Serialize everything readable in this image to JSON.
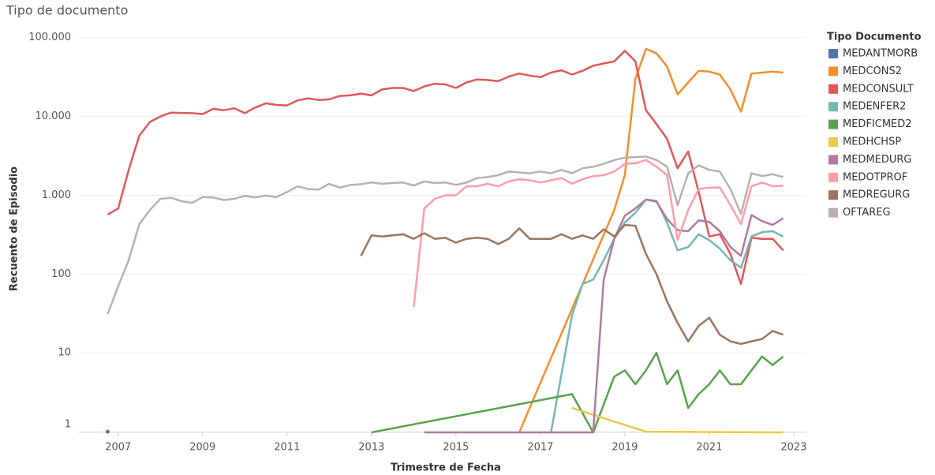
{
  "chart_data": {
    "type": "line",
    "title": "Tipo de documento",
    "x_label": "Trimestre de Fecha",
    "y_label": "Recuento de Episodio",
    "legend_title": "Tipo Documento",
    "legend": "right",
    "log_y": true,
    "grid": true,
    "xlim": [
      2006.07,
      2023.3
    ],
    "xticks": [
      2007,
      2009,
      2011,
      2013,
      2015,
      2017,
      2019,
      2021,
      2023
    ],
    "ylim": [
      0.98,
      134000
    ],
    "yticks": [
      1,
      10,
      100,
      {
        "value": 1000,
        "label": "1.000"
      },
      {
        "value": 10000,
        "label": "10.000"
      },
      {
        "value": 100000,
        "label": "100.000"
      }
    ],
    "x": [
      2006.75,
      2007,
      2007.25,
      2007.5,
      2007.75,
      2008,
      2008.25,
      2008.5,
      2008.75,
      2009,
      2009.25,
      2009.5,
      2009.75,
      2010,
      2010.25,
      2010.5,
      2010.75,
      2011,
      2011.25,
      2011.5,
      2011.75,
      2012,
      2012.25,
      2012.5,
      2012.75,
      2013,
      2013.25,
      2013.5,
      2013.75,
      2014,
      2014.25,
      2014.5,
      2014.75,
      2015,
      2015.25,
      2015.5,
      2015.75,
      2016,
      2016.25,
      2016.5,
      2016.75,
      2017,
      2017.25,
      2017.5,
      2017.75,
      2018,
      2018.25,
      2018.5,
      2018.75,
      2019,
      2019.25,
      2019.5,
      2019.75,
      2020,
      2020.25,
      2020.5,
      2020.75,
      2021,
      2021.25,
      2021.5,
      2021.75,
      2022,
      2022.25,
      2022.5,
      2022.75
    ],
    "series": [
      {
        "name": "MEDANTMORB",
        "color": "#4e79a7",
        "x": [
          2006.75
        ],
        "values": [
          1
        ]
      },
      {
        "name": "MEDCONS2",
        "color": "#f28e2b",
        "x": [
          2016.5,
          2018.75,
          2019,
          2019.25,
          2019.5,
          2019.75,
          2020,
          2020.25,
          2020.5,
          2020.75,
          2021,
          2021.25,
          2021.5,
          2021.75,
          2022,
          2022.25,
          2022.5,
          2022.75
        ],
        "values": [
          0,
          650,
          1800,
          30000,
          72000,
          63000,
          43000,
          19000,
          27000,
          38000,
          37000,
          34000,
          22000,
          11500,
          35000,
          36000,
          37000,
          36000
        ]
      },
      {
        "name": "MEDCONSULT",
        "color": "#e15759",
        "values": [
          570,
          680,
          2100,
          5700,
          8500,
          10000,
          11200,
          11100,
          11000,
          10700,
          12500,
          12000,
          12700,
          11000,
          13000,
          14700,
          14000,
          13800,
          16000,
          17000,
          16200,
          16500,
          18200,
          18500,
          19500,
          18500,
          22000,
          23000,
          23000,
          21000,
          24000,
          26000,
          25500,
          23000,
          27000,
          29500,
          29000,
          28000,
          32000,
          35000,
          33000,
          31500,
          36000,
          38500,
          34000,
          38000,
          44000,
          47000,
          50000,
          68000,
          50000,
          12000,
          8000,
          5200,
          2200,
          3600,
          1100,
          300,
          320,
          180,
          75,
          290,
          280,
          280,
          200
        ]
      },
      {
        "name": "MEDENFER2",
        "color": "#76b7b2",
        "x": [
          2017.25,
          2017.75,
          2018,
          2018.25,
          2018.5,
          2018.75,
          2019,
          2019.25,
          2019.5,
          2019.75,
          2020,
          2020.25,
          2020.5,
          2020.75,
          2021,
          2021.25,
          2021.5,
          2021.75,
          2022,
          2022.25,
          2022.5,
          2022.75
        ],
        "values": [
          0,
          30,
          75,
          85,
          150,
          280,
          450,
          600,
          880,
          850,
          450,
          200,
          220,
          320,
          270,
          210,
          150,
          120,
          300,
          340,
          350,
          300
        ]
      },
      {
        "name": "MEDFICMED2",
        "color": "#59a14f",
        "x": [
          2013,
          2017.75,
          2018.25,
          2018.75,
          2019,
          2019.25,
          2019.5,
          2019.75,
          2020,
          2020.25,
          2020.5,
          2020.75,
          2021,
          2021.25,
          2021.5,
          2021.75,
          2022,
          2022.25,
          2022.5,
          2022.75
        ],
        "values": [
          0,
          3,
          0,
          5,
          6,
          4,
          6,
          10,
          4,
          6,
          2,
          3,
          4,
          6,
          4,
          4,
          6,
          9,
          7,
          9
        ]
      },
      {
        "name": "MEDHCHSP",
        "color": "#edc948",
        "x": [
          2017.75,
          2019.5,
          2022.75
        ],
        "values": [
          2,
          1,
          0
        ]
      },
      {
        "name": "MEDMEDURG",
        "color": "#b07aa1",
        "x": [
          2014.25,
          2018.25,
          2018.5,
          2018.75,
          2019,
          2019.25,
          2019.5,
          2019.75,
          2020,
          2020.25,
          2020.5,
          2020.75,
          2021,
          2021.25,
          2021.5,
          2021.75,
          2022,
          2022.25,
          2022.5,
          2022.75
        ],
        "values": [
          0,
          0,
          85,
          280,
          550,
          680,
          880,
          830,
          500,
          360,
          350,
          480,
          460,
          350,
          220,
          170,
          560,
          470,
          420,
          510
        ]
      },
      {
        "name": "MEDOTPROF",
        "color": "#ff9da7",
        "x": [
          2014,
          2014.25,
          2014.5,
          2014.75,
          2015,
          2015.25,
          2015.5,
          2015.75,
          2016,
          2016.25,
          2016.5,
          2016.75,
          2017,
          2017.25,
          2017.5,
          2017.75,
          2018,
          2018.25,
          2018.5,
          2018.75,
          2019,
          2019.25,
          2019.5,
          2019.75,
          2020,
          2020.25,
          2020.5,
          2020.75,
          2021,
          2021.25,
          2021.5,
          2021.75,
          2022,
          2022.25,
          2022.5,
          2022.75
        ],
        "values": [
          38,
          680,
          900,
          1000,
          1000,
          1300,
          1300,
          1400,
          1300,
          1500,
          1600,
          1550,
          1450,
          1550,
          1650,
          1400,
          1600,
          1750,
          1800,
          2000,
          2500,
          2550,
          2800,
          2300,
          1800,
          270,
          650,
          1200,
          1250,
          1250,
          750,
          430,
          1300,
          1450,
          1300,
          1320
        ]
      },
      {
        "name": "MEDREGURG",
        "color": "#9c755f",
        "x": [
          2012.75,
          2013,
          2013.25,
          2013.5,
          2013.75,
          2014,
          2014.25,
          2014.5,
          2014.75,
          2015,
          2015.25,
          2015.5,
          2015.75,
          2016,
          2016.25,
          2016.5,
          2016.75,
          2017,
          2017.25,
          2017.5,
          2017.75,
          2018,
          2018.25,
          2018.5,
          2018.75,
          2019,
          2019.25,
          2019.5,
          2019.75,
          2020,
          2020.25,
          2020.5,
          2020.75,
          2021,
          2021.25,
          2021.5,
          2021.75,
          2022,
          2022.25,
          2022.5,
          2022.75
        ],
        "values": [
          170,
          310,
          300,
          310,
          320,
          280,
          330,
          280,
          290,
          250,
          280,
          290,
          280,
          240,
          280,
          380,
          280,
          280,
          280,
          320,
          280,
          310,
          280,
          370,
          300,
          420,
          410,
          180,
          100,
          45,
          24,
          14,
          22,
          28,
          17,
          14,
          13,
          14,
          15,
          19,
          17
        ]
      },
      {
        "name": "OFTAREG",
        "color": "#bab0ac",
        "values": [
          31,
          70,
          150,
          430,
          650,
          900,
          930,
          840,
          800,
          950,
          940,
          870,
          900,
          980,
          940,
          990,
          950,
          1100,
          1300,
          1200,
          1180,
          1400,
          1250,
          1350,
          1380,
          1450,
          1400,
          1430,
          1450,
          1330,
          1500,
          1430,
          1450,
          1350,
          1450,
          1650,
          1700,
          1800,
          2000,
          1950,
          1900,
          2000,
          1900,
          2100,
          1900,
          2200,
          2300,
          2500,
          2800,
          3000,
          3050,
          3100,
          2800,
          2300,
          750,
          1900,
          2400,
          2100,
          2000,
          1200,
          580,
          1900,
          1750,
          1850,
          1700
        ]
      }
    ]
  }
}
